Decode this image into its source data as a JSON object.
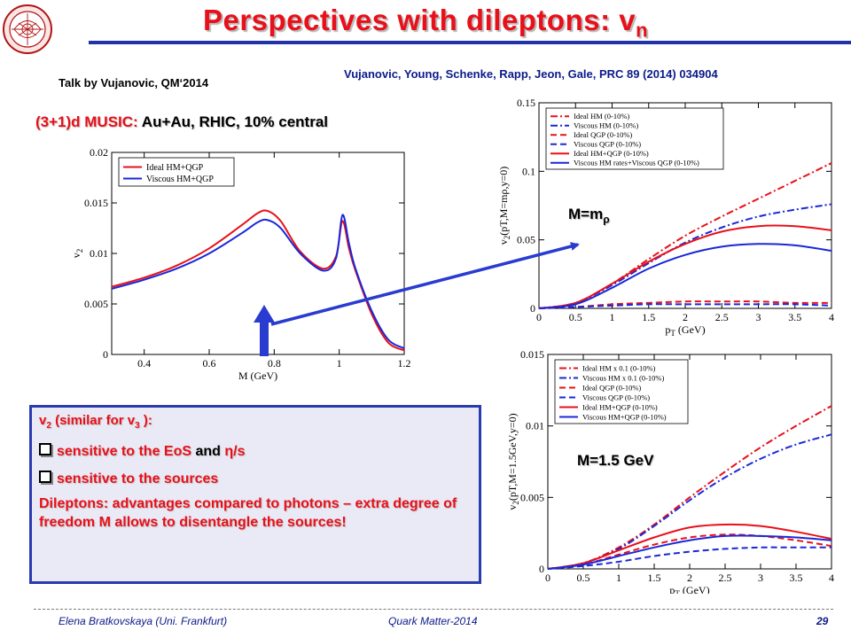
{
  "slide": {
    "title": "Perspectives with dileptons:  v",
    "title_sub": "n",
    "talk_note": "Talk by  Vujanovic, QM‘2014",
    "reference": "Vujanovic,  Young,  Schenke,  Rapp,  Jeon,  Gale,  PRC 89 (2014) 034904",
    "music_label": "(3+1)d MUSIC:",
    "music_detail": " Au+Au, RHIC, 10% central",
    "label_m_rho": "M=m",
    "label_m_rho_sub": "ρ",
    "label_m_15": "M=1.5 GeV",
    "footer_left": "Elena Bratkovskaya  (Uni. Frankfurt)",
    "footer_center": "Quark Matter-2014",
    "footer_page": "29"
  },
  "textbox": {
    "line1_a": "v",
    "line1_sub": "2",
    "line1_b": " (similar for v",
    "line1_sub2": "3",
    "line1_c": " ):",
    "item1_a": "sensitive to the ",
    "item1_eos": "EoS",
    "item1_and": " and ",
    "item1_eta": "η/s",
    "item2": "sensitive to the sources",
    "final": "Dileptons: advantages compared to photons – extra degree of freedom M allows to disentangle the sources!"
  },
  "colors": {
    "red": "#e8101a",
    "blue": "#1a28d8",
    "box_border": "#2a3bb0",
    "rule": "#2233aa"
  },
  "chart_data": [
    {
      "id": "v2_vs_M",
      "type": "line",
      "xlabel": "M (GeV)",
      "ylabel": "v2",
      "xlim": [
        0.3,
        1.2
      ],
      "ylim": [
        0,
        0.02
      ],
      "xticks": [
        0.4,
        0.6,
        0.8,
        1,
        1.2
      ],
      "yticks": [
        0,
        0.005,
        0.01,
        0.015,
        0.02
      ],
      "ytick_labels": [
        "0",
        "0.005",
        "0.01",
        "0.015",
        "0.02"
      ],
      "legend_position": "top-left",
      "series": [
        {
          "name": "Ideal HM+QGP",
          "color": "#e8101a",
          "dash": "solid",
          "x": [
            0.3,
            0.4,
            0.5,
            0.6,
            0.7,
            0.75,
            0.78,
            0.82,
            0.88,
            0.95,
            0.99,
            1.01,
            1.03,
            1.05,
            1.1,
            1.15,
            1.2
          ],
          "y": [
            0.0067,
            0.0076,
            0.0088,
            0.0105,
            0.0128,
            0.014,
            0.0142,
            0.0132,
            0.0102,
            0.0085,
            0.0097,
            0.0132,
            0.0105,
            0.0083,
            0.004,
            0.0012,
            0.0004
          ]
        },
        {
          "name": "Viscous HM+QGP",
          "color": "#1a28d8",
          "dash": "solid",
          "x": [
            0.3,
            0.4,
            0.5,
            0.6,
            0.7,
            0.75,
            0.78,
            0.82,
            0.88,
            0.95,
            0.99,
            1.01,
            1.03,
            1.05,
            1.1,
            1.15,
            1.2
          ],
          "y": [
            0.0065,
            0.0074,
            0.0085,
            0.01,
            0.012,
            0.0131,
            0.0133,
            0.0125,
            0.01,
            0.0083,
            0.0095,
            0.0138,
            0.011,
            0.0085,
            0.0043,
            0.0015,
            0.0006
          ]
        }
      ]
    },
    {
      "id": "v2_vs_pT_Mrho",
      "type": "line",
      "xlabel": "pT (GeV)",
      "ylabel": "v2(pT,M=mρ,y=0)",
      "xlim": [
        0,
        4
      ],
      "ylim": [
        0,
        0.15
      ],
      "xticks": [
        0,
        0.5,
        1,
        1.5,
        2,
        2.5,
        3,
        3.5,
        4
      ],
      "yticks": [
        0,
        0.05,
        0.1,
        0.15
      ],
      "ytick_labels": [
        "0",
        "0.05",
        "0.1",
        "0.15"
      ],
      "legend_position": "top-left",
      "series": [
        {
          "name": "Ideal HM (0-10%)",
          "color": "#e8101a",
          "dash": "dashdot",
          "x": [
            0,
            0.5,
            1,
            1.5,
            2,
            2.5,
            3,
            3.5,
            4
          ],
          "y": [
            0,
            0.004,
            0.018,
            0.036,
            0.053,
            0.067,
            0.08,
            0.093,
            0.106
          ]
        },
        {
          "name": "Viscous HM (0-10%)",
          "color": "#1a28d8",
          "dash": "dashdot",
          "x": [
            0,
            0.5,
            1,
            1.5,
            2,
            2.5,
            3,
            3.5,
            4
          ],
          "y": [
            0,
            0.004,
            0.017,
            0.033,
            0.048,
            0.059,
            0.067,
            0.072,
            0.076
          ]
        },
        {
          "name": "Ideal QGP (0-10%)",
          "color": "#e8101a",
          "dash": "dash",
          "x": [
            0,
            0.5,
            1,
            1.5,
            2,
            2.5,
            3,
            3.5,
            4
          ],
          "y": [
            0,
            0.001,
            0.003,
            0.004,
            0.005,
            0.005,
            0.005,
            0.004,
            0.004
          ]
        },
        {
          "name": "Viscous QGP (0-10%)",
          "color": "#1a28d8",
          "dash": "dash",
          "x": [
            0,
            0.5,
            1,
            1.5,
            2,
            2.5,
            3,
            3.5,
            4
          ],
          "y": [
            0,
            0.001,
            0.002,
            0.003,
            0.003,
            0.003,
            0.003,
            0.003,
            0.002
          ]
        },
        {
          "name": "Ideal HM+QGP (0-10%)",
          "color": "#e8101a",
          "dash": "solid",
          "x": [
            0,
            0.5,
            1,
            1.5,
            2,
            2.5,
            3,
            3.5,
            4
          ],
          "y": [
            0,
            0.004,
            0.018,
            0.034,
            0.047,
            0.056,
            0.06,
            0.06,
            0.057
          ]
        },
        {
          "name": "Viscous HM rates+Viscous QGP (0-10%)",
          "color": "#1a28d8",
          "dash": "solid",
          "x": [
            0,
            0.5,
            1,
            1.5,
            2,
            2.5,
            3,
            3.5,
            4
          ],
          "y": [
            0,
            0.003,
            0.015,
            0.029,
            0.039,
            0.045,
            0.047,
            0.046,
            0.042
          ]
        }
      ]
    },
    {
      "id": "v2_vs_pT_M15",
      "type": "line",
      "xlabel": "pT (GeV)",
      "ylabel": "v2(pT,M=1.5GeV,y=0)",
      "xlim": [
        0,
        4
      ],
      "ylim": [
        0,
        0.015
      ],
      "xticks": [
        0,
        0.5,
        1,
        1.5,
        2,
        2.5,
        3,
        3.5,
        4
      ],
      "yticks": [
        0,
        0.005,
        0.01,
        0.015
      ],
      "ytick_labels": [
        "0",
        "0.005",
        "0.01",
        "0.015"
      ],
      "legend_position": "top-left",
      "series": [
        {
          "name": "Ideal HM x 0.1 (0-10%)",
          "color": "#e8101a",
          "dash": "dashdot",
          "x": [
            0,
            0.5,
            1,
            1.5,
            2,
            2.5,
            3,
            3.5,
            4
          ],
          "y": [
            0,
            0.0004,
            0.0015,
            0.0031,
            0.005,
            0.0068,
            0.0085,
            0.01,
            0.0114
          ]
        },
        {
          "name": "Viscous HM x 0.1 (0-10%)",
          "color": "#1a28d8",
          "dash": "dashdot",
          "x": [
            0,
            0.5,
            1,
            1.5,
            2,
            2.5,
            3,
            3.5,
            4
          ],
          "y": [
            0,
            0.0004,
            0.0014,
            0.003,
            0.0048,
            0.0064,
            0.0077,
            0.0087,
            0.0094
          ]
        },
        {
          "name": "Ideal QGP (0-10%)",
          "color": "#e8101a",
          "dash": "dash",
          "x": [
            0,
            0.5,
            1,
            1.5,
            2,
            2.5,
            3,
            3.5,
            4
          ],
          "y": [
            0,
            0.0003,
            0.001,
            0.0017,
            0.0022,
            0.0024,
            0.0023,
            0.002,
            0.0016
          ]
        },
        {
          "name": "Viscous QGP (0-10%)",
          "color": "#1a28d8",
          "dash": "dash",
          "x": [
            0,
            0.5,
            1,
            1.5,
            2,
            2.5,
            3,
            3.5,
            4
          ],
          "y": [
            0,
            0.0002,
            0.0005,
            0.0009,
            0.0012,
            0.0014,
            0.0015,
            0.0015,
            0.0015
          ]
        },
        {
          "name": "Ideal HM+QGP (0-10%)",
          "color": "#e8101a",
          "dash": "solid",
          "x": [
            0,
            0.5,
            1,
            1.5,
            2,
            2.5,
            3,
            3.5,
            4
          ],
          "y": [
            0,
            0.0004,
            0.0013,
            0.0022,
            0.0029,
            0.0031,
            0.003,
            0.0026,
            0.0021
          ]
        },
        {
          "name": "Viscous HM+QGP (0-10%)",
          "color": "#1a28d8",
          "dash": "solid",
          "x": [
            0,
            0.5,
            1,
            1.5,
            2,
            2.5,
            3,
            3.5,
            4
          ],
          "y": [
            0,
            0.0003,
            0.0009,
            0.0015,
            0.002,
            0.0023,
            0.0023,
            0.0022,
            0.002
          ]
        }
      ]
    }
  ]
}
